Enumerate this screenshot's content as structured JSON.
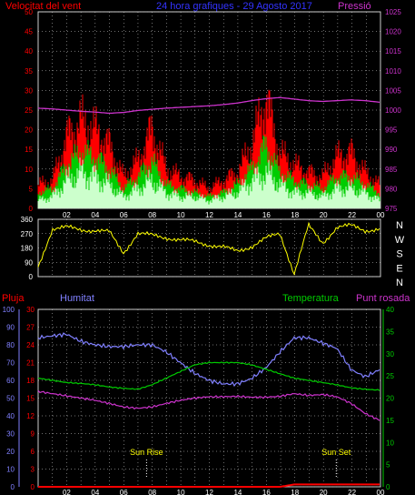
{
  "header": {
    "wind_title": "Velocitat del vent",
    "center_title": "24 hora grafiques  -  29 Agosto 2017",
    "pressure_title": "Pressió"
  },
  "labels": {
    "pluja": "Pluja",
    "humitat": "Humitat",
    "temperatura": "Temperatura",
    "punt_rosada": "Punt rosada",
    "sun_rise": "Sun Rise",
    "sun_set": "Sun Set"
  },
  "colors": {
    "wind_gust": "#ff0000",
    "wind_avg": "#00cc00",
    "wind_low": "#ccffcc",
    "pressure": "#cc33cc",
    "direction": "#ffff00",
    "humidity": "#8080ff",
    "temperature": "#00cc00",
    "dewpoint": "#cc33cc",
    "rain": "#ff0000"
  },
  "chart_data": [
    {
      "type": "area",
      "x_tick_labels": [
        "02",
        "04",
        "06",
        "08",
        "10",
        "12",
        "14",
        "16",
        "18",
        "20",
        "22",
        "00"
      ],
      "y_left_ticks": [
        "0",
        "5",
        "10",
        "15",
        "20",
        "25",
        "30",
        "35",
        "40",
        "45",
        "50"
      ],
      "y_left_range": [
        0,
        50
      ],
      "y_right_ticks": [
        "975",
        "980",
        "985",
        "990",
        "995",
        "1000",
        "1005",
        "1010",
        "1015",
        "1020",
        "1025"
      ],
      "y_right_range": [
        975,
        1025
      ],
      "x_hours": [
        0,
        1,
        2,
        3,
        4,
        5,
        6,
        7,
        8,
        9,
        10,
        11,
        12,
        13,
        14,
        15,
        16,
        17,
        18,
        19,
        20,
        21,
        22,
        23,
        24
      ],
      "series": [
        {
          "values": [
            6,
            7,
            18,
            22,
            20,
            16,
            8,
            12,
            20,
            10,
            8,
            7,
            5,
            7,
            9,
            16,
            28,
            14,
            11,
            9,
            8,
            13,
            14,
            9,
            6
          ]
        },
        {
          "values": [
            4,
            5,
            11,
            14,
            13,
            10,
            5,
            8,
            12,
            6,
            5,
            4,
            3,
            4,
            6,
            10,
            16,
            9,
            7,
            6,
            5,
            8,
            8,
            6,
            4
          ]
        },
        {
          "values": [
            2,
            3,
            7,
            9,
            8,
            6,
            3,
            5,
            7,
            4,
            3,
            3,
            2,
            3,
            4,
            7,
            9,
            6,
            4,
            4,
            3,
            5,
            5,
            4,
            2
          ]
        },
        {
          "values": [
            1000.5,
            1000.3,
            1000,
            999.7,
            999.5,
            999.2,
            999.4,
            999.9,
            1000.2,
            1000.5,
            1000.7,
            1000.9,
            1001.1,
            1001.4,
            1001.8,
            1002.4,
            1002.9,
            1003.2,
            1002.8,
            1002.4,
            1002.2,
            1002.4,
            1002.6,
            1002.4,
            1002
          ]
        }
      ]
    },
    {
      "type": "line",
      "y_ticks": [
        "0",
        "90",
        "180",
        "270",
        "360"
      ],
      "y_range": [
        0,
        360
      ],
      "compass_labels": [
        "N",
        "W",
        "S",
        "E",
        "N"
      ],
      "x_hours": [
        0,
        1,
        2,
        3,
        4,
        5,
        6,
        7,
        8,
        9,
        10,
        11,
        12,
        13,
        14,
        15,
        16,
        17,
        18,
        19,
        20,
        21,
        22,
        23,
        24
      ],
      "series": [
        {
          "values": [
            60,
            300,
            310,
            295,
            290,
            280,
            150,
            270,
            260,
            245,
            230,
            220,
            200,
            185,
            160,
            190,
            240,
            270,
            20,
            320,
            210,
            310,
            320,
            290,
            300
          ]
        }
      ]
    },
    {
      "type": "line",
      "y_humidity_ticks": [
        "0",
        "10",
        "20",
        "30",
        "40",
        "50",
        "60",
        "70",
        "80",
        "90",
        "100"
      ],
      "y_rain_ticks": [
        "0",
        "3",
        "6",
        "9",
        "12",
        "15",
        "18",
        "21",
        "24",
        "27",
        "30"
      ],
      "y_temp_ticks": [
        "0",
        "5",
        "10",
        "15",
        "20",
        "25",
        "30",
        "35",
        "40"
      ],
      "x_hours": [
        0,
        1,
        2,
        3,
        4,
        5,
        6,
        7,
        8,
        9,
        10,
        11,
        12,
        13,
        14,
        15,
        16,
        17,
        18,
        19,
        20,
        21,
        22,
        23,
        24
      ],
      "series": [
        {
          "name": "Humitat",
          "values": [
            84,
            85,
            86,
            82,
            80,
            79,
            79,
            80,
            80,
            76,
            70,
            64,
            60,
            58,
            58,
            61,
            67,
            76,
            84,
            84,
            81,
            78,
            66,
            62,
            66
          ]
        },
        {
          "name": "Temperatura",
          "values": [
            24.5,
            24,
            23.5,
            23.3,
            23,
            22.5,
            22.2,
            22,
            23,
            24.5,
            26,
            27.5,
            28,
            28,
            28,
            27.5,
            26.5,
            25.5,
            24.5,
            24,
            23.5,
            23,
            22.3,
            22,
            21.8
          ]
        },
        {
          "name": "Punt rosada",
          "values": [
            21.5,
            21,
            20.5,
            20,
            19.5,
            18.8,
            18,
            17.7,
            18,
            18.8,
            19.5,
            20,
            20.3,
            20.3,
            20.4,
            20.2,
            20.2,
            20.4,
            21,
            20.6,
            20.8,
            20.3,
            18.8,
            16.5,
            15
          ]
        },
        {
          "name": "Pluja",
          "values": [
            0,
            0,
            0,
            0,
            0,
            0,
            0,
            0,
            0,
            0,
            0,
            0,
            0,
            0,
            0,
            0,
            0,
            0,
            0.4,
            0.4,
            0.4,
            0.4,
            0.4,
            0.4,
            0.4
          ]
        }
      ],
      "annotations": [
        "Sun Rise",
        "Sun Set"
      ],
      "sun_rise_hour": 7.6,
      "sun_set_hour": 20.9
    }
  ]
}
